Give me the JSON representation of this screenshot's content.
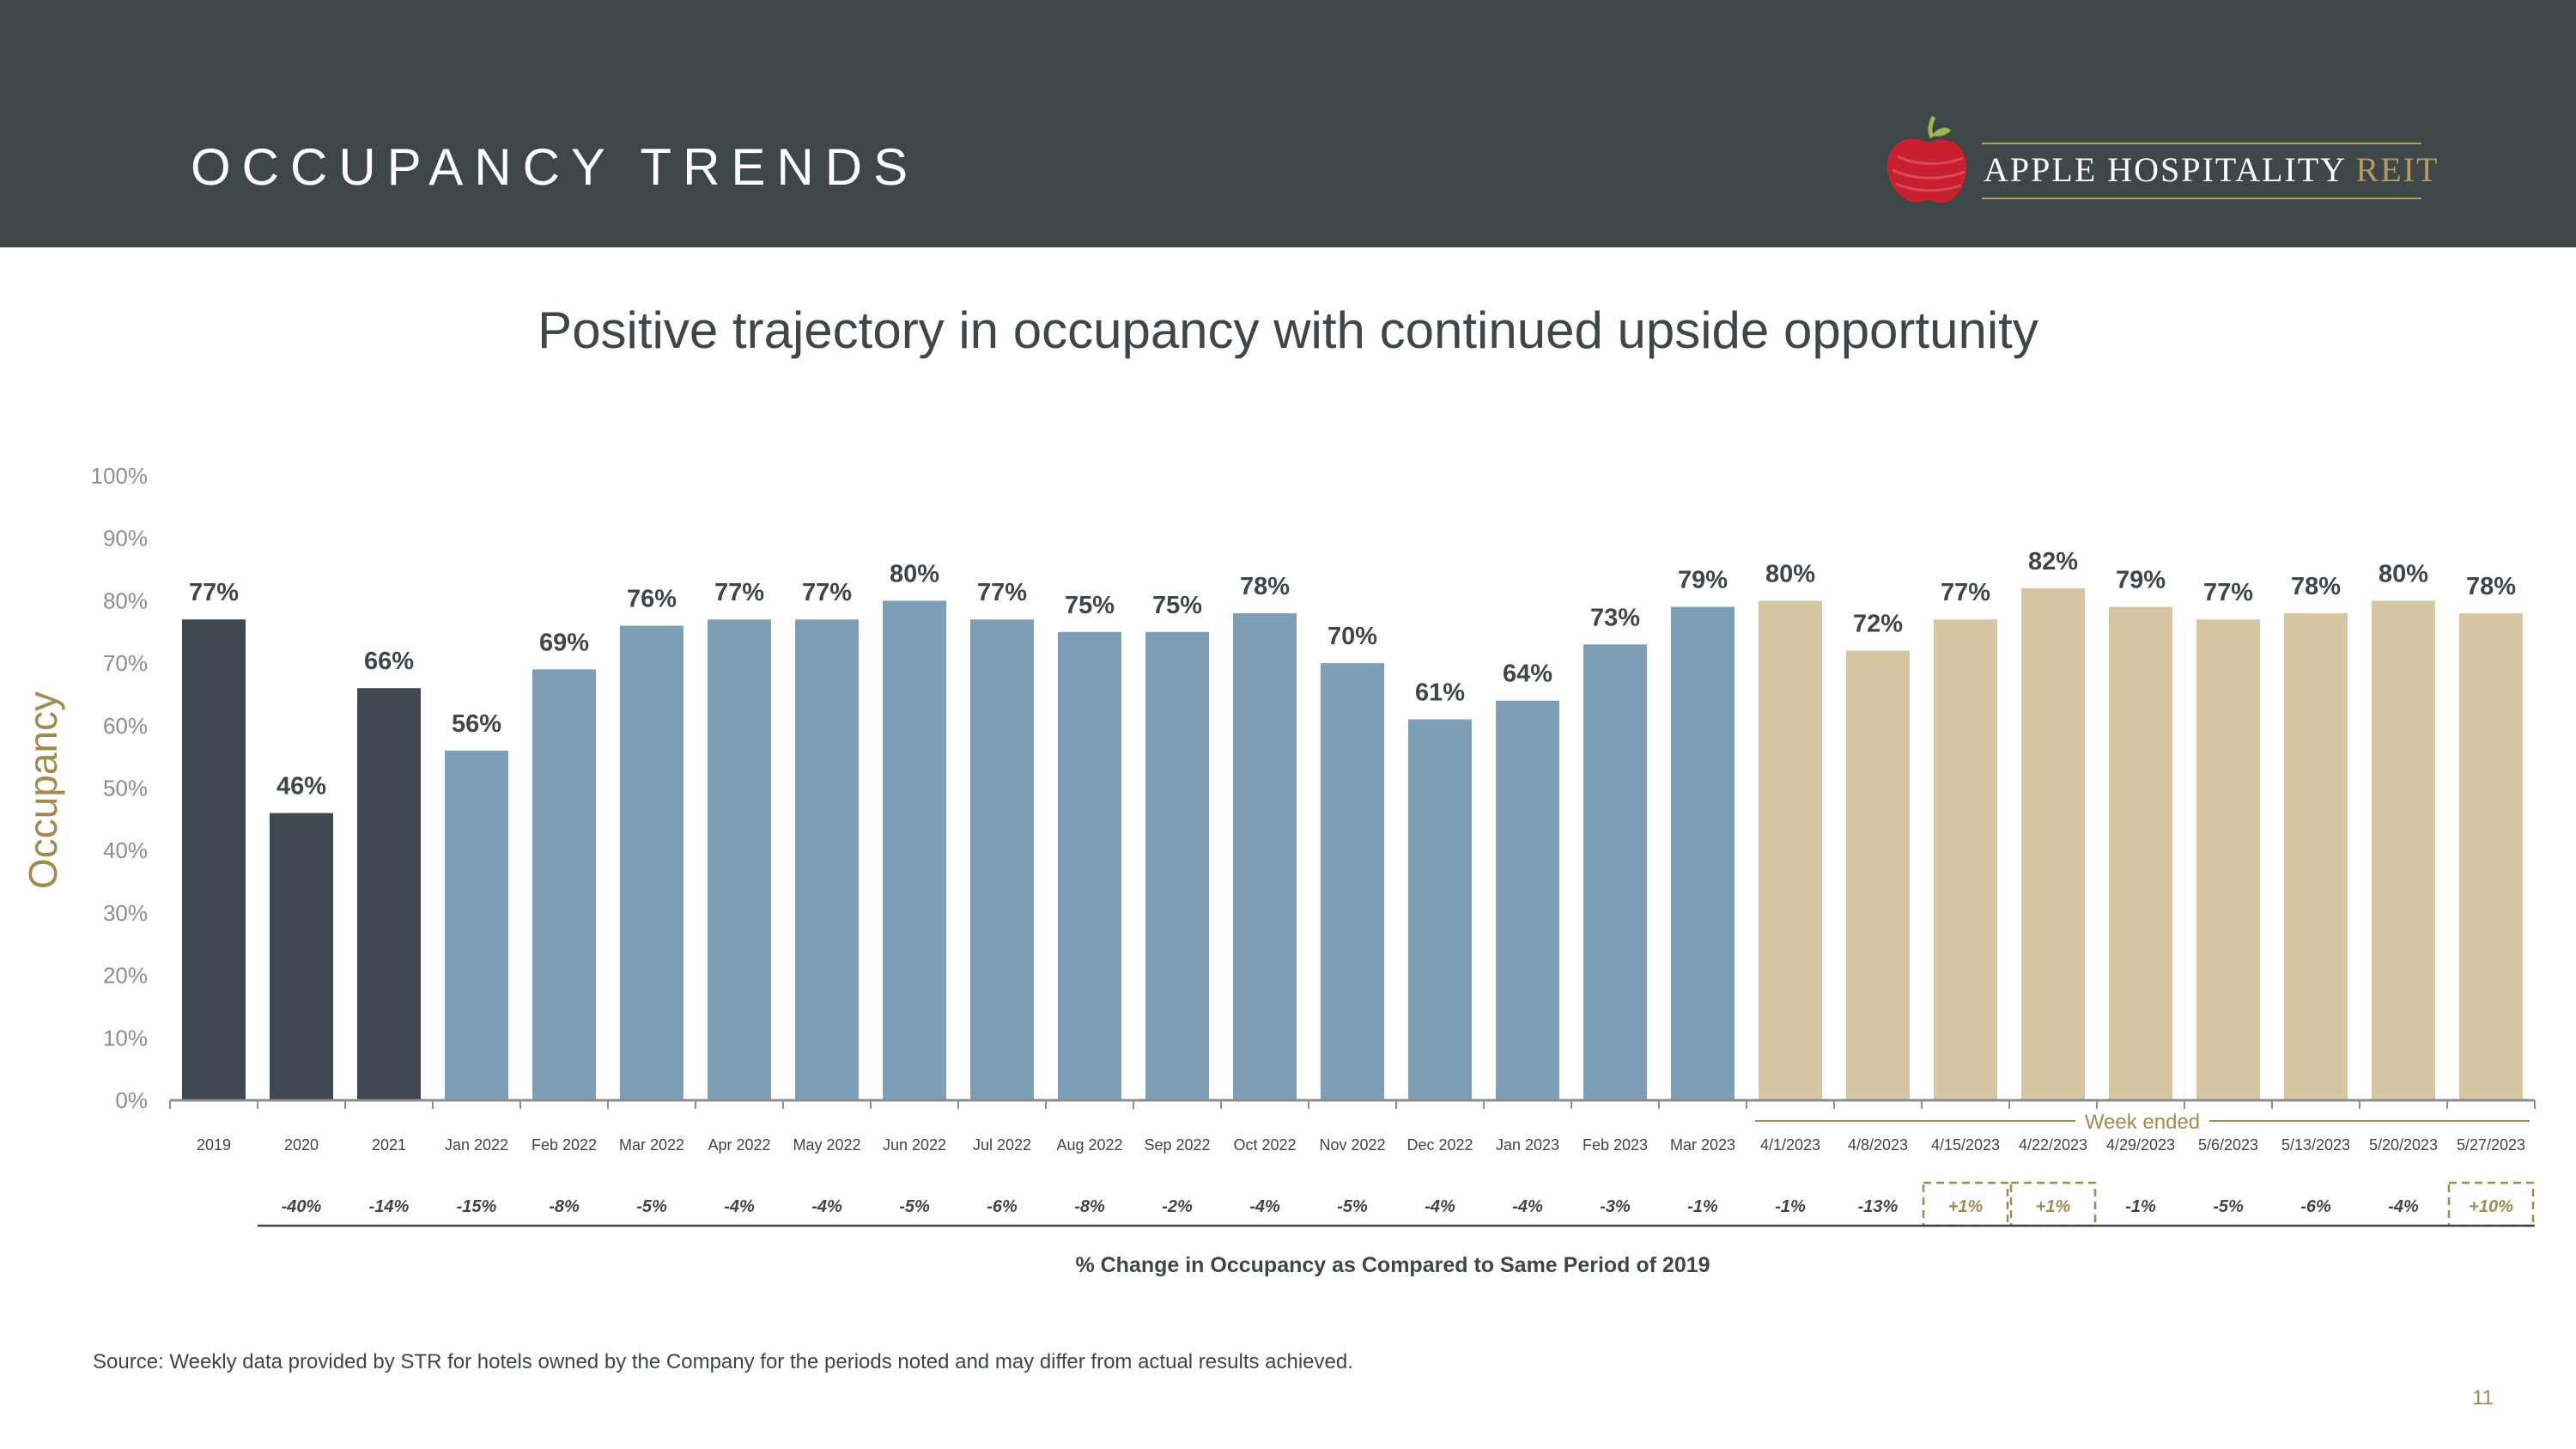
{
  "header": {
    "title": "OCCUPANCY TRENDS"
  },
  "logo": {
    "name_main": "APPLE HOSPITALITY",
    "name_accent": "REIT"
  },
  "subtitle": "Positive trajectory in occupancy with continued upside opportunity",
  "source": "Source:  Weekly data provided by STR for hotels owned by the Company for the periods noted and may differ from actual results achieved.",
  "page_number": "11",
  "colors": {
    "header_bg": "#3f4649",
    "annual": "#3f4851",
    "monthly": "#7d9fb6",
    "weekly": "#d6c6a2",
    "accent": "#a38b4f"
  },
  "chart_data": {
    "type": "bar",
    "ylabel": "Occupancy",
    "ylim": [
      0,
      100
    ],
    "yticks": [
      "0%",
      "10%",
      "20%",
      "30%",
      "40%",
      "50%",
      "60%",
      "70%",
      "80%",
      "90%",
      "100%"
    ],
    "categories": [
      "2019",
      "2020",
      "2021",
      "Jan 2022",
      "Feb 2022",
      "Mar 2022",
      "Apr 2022",
      "May 2022",
      "Jun 2022",
      "Jul 2022",
      "Aug 2022",
      "Sep 2022",
      "Oct 2022",
      "Nov 2022",
      "Dec 2022",
      "Jan 2023",
      "Feb 2023",
      "Mar 2023",
      "4/1/2023",
      "4/8/2023",
      "4/15/2023",
      "4/22/2023",
      "4/29/2023",
      "5/6/2023",
      "5/13/2023",
      "5/20/2023",
      "5/27/2023"
    ],
    "values": [
      77,
      46,
      66,
      56,
      69,
      76,
      77,
      77,
      80,
      77,
      75,
      75,
      78,
      70,
      61,
      64,
      73,
      79,
      80,
      72,
      77,
      82,
      79,
      77,
      78,
      80,
      78
    ],
    "value_labels": [
      "77%",
      "46%",
      "66%",
      "56%",
      "69%",
      "76%",
      "77%",
      "77%",
      "80%",
      "77%",
      "75%",
      "75%",
      "78%",
      "70%",
      "61%",
      "64%",
      "73%",
      "79%",
      "80%",
      "72%",
      "77%",
      "82%",
      "79%",
      "77%",
      "78%",
      "80%",
      "78%"
    ],
    "groups": [
      "annual",
      "annual",
      "annual",
      "monthly",
      "monthly",
      "monthly",
      "monthly",
      "monthly",
      "monthly",
      "monthly",
      "monthly",
      "monthly",
      "monthly",
      "monthly",
      "monthly",
      "monthly",
      "monthly",
      "monthly",
      "weekly",
      "weekly",
      "weekly",
      "weekly",
      "weekly",
      "weekly",
      "weekly",
      "weekly",
      "weekly"
    ],
    "change_vs_2019": [
      "",
      "-40%",
      "-14%",
      "-15%",
      "-8%",
      "-5%",
      "-4%",
      "-4%",
      "-5%",
      "-6%",
      "-8%",
      "-2%",
      "-4%",
      "-5%",
      "-4%",
      "-4%",
      "-3%",
      "-1%",
      "-1%",
      "-13%",
      "+1%",
      "+1%",
      "-1%",
      "-5%",
      "-6%",
      "-4%",
      "+10%"
    ],
    "week_bracket_label": "Week ended",
    "change_caption": "% Change in Occupancy as Compared to Same Period of 2019",
    "grid": false
  }
}
